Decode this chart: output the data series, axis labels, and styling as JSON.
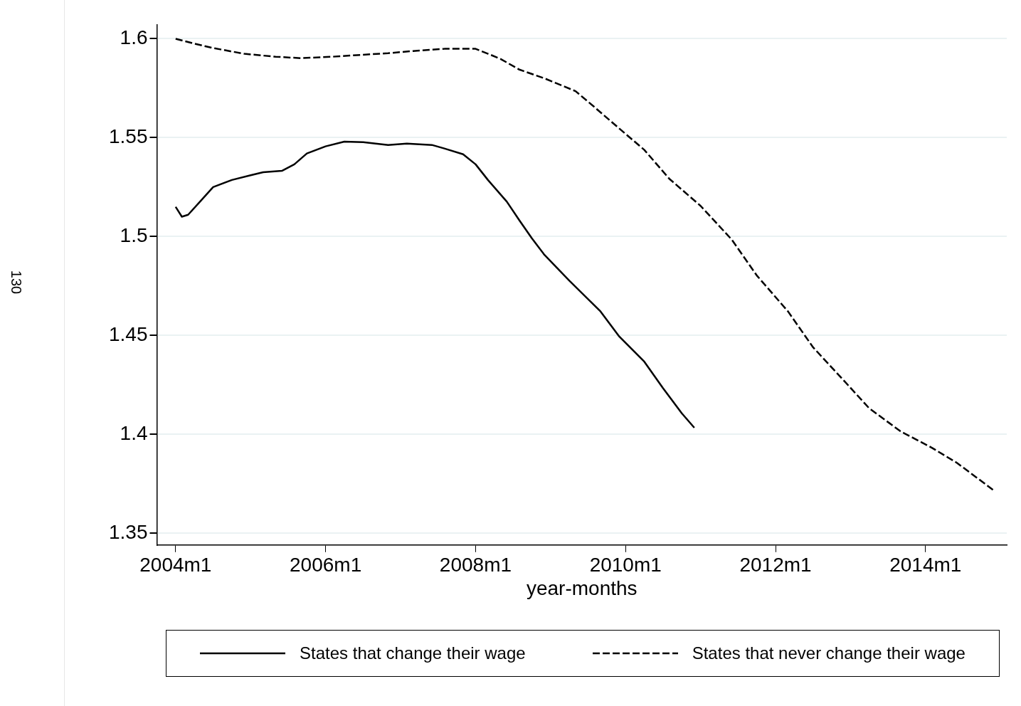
{
  "chart_data": {
    "type": "line",
    "xlabel": "year-months",
    "annotations": [
      "130"
    ],
    "xlim": [
      "2003-10",
      "2015-02"
    ],
    "ylim": [
      1.344,
      1.607
    ],
    "xticks": [
      {
        "value": "2004-01",
        "label": "2004m1"
      },
      {
        "value": "2006-01",
        "label": "2006m1"
      },
      {
        "value": "2008-01",
        "label": "2008m1"
      },
      {
        "value": "2010-01",
        "label": "2010m1"
      },
      {
        "value": "2012-01",
        "label": "2012m1"
      },
      {
        "value": "2014-01",
        "label": "2014m1"
      }
    ],
    "yticks": [
      1.35,
      1.4,
      1.45,
      1.5,
      1.55,
      1.6
    ],
    "grid": "y",
    "legend": "bottom",
    "marker": "none",
    "series": [
      {
        "name": "States that change their wage",
        "color": "#000000",
        "line_style": "solid",
        "x": [
          "2004-01",
          "2004-02",
          "2004-03",
          "2004-05",
          "2004-07",
          "2004-10",
          "2005-01",
          "2005-03",
          "2005-06",
          "2005-08",
          "2005-10",
          "2006-01",
          "2006-04",
          "2006-07",
          "2006-11",
          "2007-02",
          "2007-06",
          "2007-08",
          "2007-11",
          "2008-01",
          "2008-03",
          "2008-06",
          "2008-08",
          "2008-10",
          "2008-12",
          "2009-04",
          "2009-09",
          "2009-12",
          "2010-04",
          "2010-07",
          "2010-10",
          "2010-12"
        ],
        "values": [
          1.515,
          1.51,
          1.511,
          1.518,
          1.525,
          1.5286,
          1.531,
          1.5325,
          1.5332,
          1.5365,
          1.542,
          1.5456,
          1.548,
          1.5477,
          1.5463,
          1.547,
          1.5463,
          1.5445,
          1.5416,
          1.5365,
          1.5285,
          1.5176,
          1.5082,
          1.4991,
          1.4908,
          1.4777,
          1.4621,
          1.4494,
          1.4367,
          1.4233,
          1.4106,
          1.4033
        ]
      },
      {
        "name": "States that never change their wage",
        "color": "#000000",
        "line_style": "dashed",
        "x": [
          "2004-01",
          "2004-04",
          "2004-07",
          "2004-12",
          "2005-05",
          "2005-09",
          "2006-02",
          "2006-06",
          "2006-11",
          "2007-03",
          "2007-08",
          "2008-01",
          "2008-03",
          "2008-05",
          "2008-08",
          "2008-12",
          "2009-05",
          "2009-08",
          "2009-12",
          "2010-04",
          "2010-08",
          "2011-01",
          "2011-06",
          "2011-10",
          "2012-03",
          "2012-07",
          "2012-12",
          "2013-04",
          "2013-09",
          "2014-02",
          "2014-06",
          "2014-12"
        ],
        "values": [
          1.6,
          1.5975,
          1.5953,
          1.5924,
          1.5909,
          1.5902,
          1.5909,
          1.5917,
          1.5927,
          1.5938,
          1.5949,
          1.5949,
          1.5924,
          1.5898,
          1.5844,
          1.58,
          1.5735,
          1.5655,
          1.5546,
          1.5438,
          1.5292,
          1.5155,
          1.4984,
          1.4803,
          1.4621,
          1.444,
          1.4269,
          1.4131,
          1.4015,
          1.3932,
          1.3856,
          1.3714
        ]
      }
    ]
  }
}
